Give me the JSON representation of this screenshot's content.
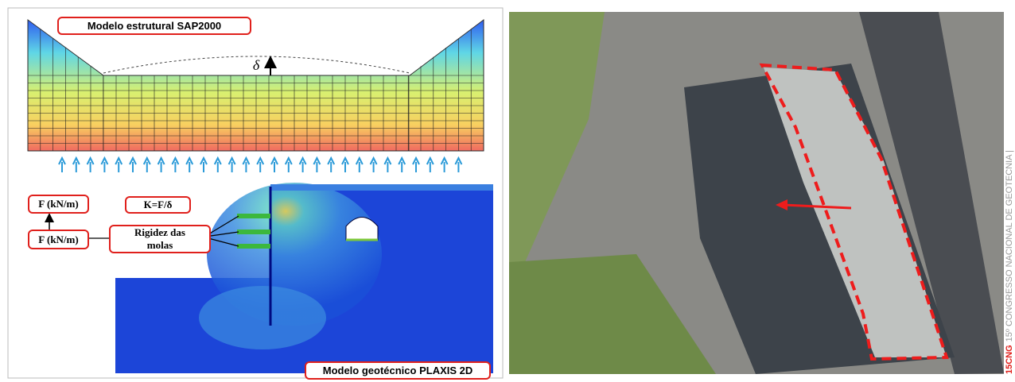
{
  "left_panel": {
    "structural_model": {
      "title": "Modelo estrutural SAP2000",
      "displacement_symbol": "δ"
    },
    "labels": {
      "force_top": "F (kN/m)",
      "stiffness_formula": "K=F/δ",
      "force_left": "F (kN/m)",
      "springs": "Rigidez das molas"
    },
    "geotechnical_model": {
      "title": "Modelo geotécnico PLAXIS 2D"
    }
  },
  "right_panel": {
    "side_caption": {
      "brand": "15CNG",
      "text": "15º CONGRESSO NACIONAL DE GEOTECNIA |"
    }
  }
}
